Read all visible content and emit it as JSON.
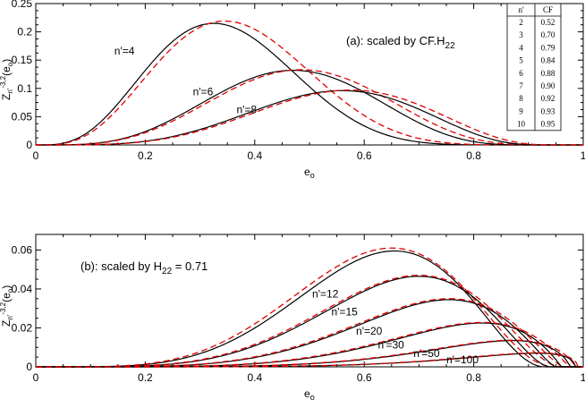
{
  "chart_data": [
    {
      "panel": "a",
      "type": "line",
      "annotation": "(a): scaled by CF.H",
      "annotation_sub": "22",
      "xlabel_main": "e",
      "xlabel_sub": "o",
      "ylabel_main": "Z",
      "ylabel_rest": "n'",
      "ylabel_sup": "-3,2",
      "ylabel_tail": "(e",
      "ylabel_tail_sub": "o",
      "ylabel_close": ")",
      "xlim": [
        0,
        1
      ],
      "ylim": [
        0,
        0.25
      ],
      "xticks": [
        "0",
        "0.2",
        "0.4",
        "0.6",
        "0.8",
        "1"
      ],
      "yticks": [
        "0",
        "0.05",
        "0.1",
        "0.15",
        "0.2",
        "0.25"
      ],
      "series": [
        {
          "label": "n'=4",
          "peak_x": 0.325,
          "peak_y": 0.215,
          "end_x": 0.93,
          "approx_peak_x": 0.345,
          "approx_peak_y": 0.219,
          "approx_end_x": 0.97
        },
        {
          "label": "n'=6",
          "peak_x": 0.47,
          "peak_y": 0.132,
          "end_x": 0.92,
          "approx_peak_x": 0.485,
          "approx_peak_y": 0.133,
          "approx_end_x": 0.95
        },
        {
          "label": "n'=8",
          "peak_x": 0.56,
          "peak_y": 0.096,
          "end_x": 0.93,
          "approx_peak_x": 0.575,
          "approx_peak_y": 0.097,
          "approx_end_x": 0.95
        }
      ],
      "cf_table": {
        "headers": [
          "n'",
          "CF"
        ],
        "rows": [
          [
            "2",
            "0.52"
          ],
          [
            "3",
            "0.70"
          ],
          [
            "4",
            "0.79"
          ],
          [
            "5",
            "0.84"
          ],
          [
            "6",
            "0.88"
          ],
          [
            "7",
            "0.90"
          ],
          [
            "8",
            "0.92"
          ],
          [
            "9",
            "0.93"
          ],
          [
            "10",
            "0.95"
          ]
        ]
      }
    },
    {
      "panel": "b",
      "type": "line",
      "annotation": "(b): scaled by H",
      "annotation_sub": "22",
      "annotation_tail": " = 0.71",
      "xlabel_main": "e",
      "xlabel_sub": "o",
      "ylabel_main": "Z",
      "ylabel_rest": "n'",
      "ylabel_sup": "-3,2",
      "ylabel_tail": "(e",
      "ylabel_tail_sub": "o",
      "ylabel_close": ")",
      "xlim": [
        0,
        1
      ],
      "ylim": [
        0,
        0.068
      ],
      "xticks": [
        "0",
        "0.2",
        "0.4",
        "0.6",
        "0.8",
        "1"
      ],
      "yticks": [
        "0",
        "0.02",
        "0.04",
        "0.06"
      ],
      "series": [
        {
          "label": "n'=12",
          "peak_x": 0.655,
          "peak_y": 0.0595,
          "end_x": 0.93,
          "approx_peak_x": 0.65,
          "approx_peak_y": 0.061,
          "approx_end_x": 0.95
        },
        {
          "label": "n'=15",
          "peak_x": 0.7,
          "peak_y": 0.0465,
          "end_x": 0.94,
          "approx_peak_x": 0.7,
          "approx_peak_y": 0.047,
          "approx_end_x": 0.96
        },
        {
          "label": "n'=20",
          "peak_x": 0.755,
          "peak_y": 0.0345,
          "end_x": 0.95,
          "approx_peak_x": 0.755,
          "approx_peak_y": 0.035,
          "approx_end_x": 0.965
        },
        {
          "label": "n'=30",
          "peak_x": 0.815,
          "peak_y": 0.0225,
          "end_x": 0.96,
          "approx_peak_x": 0.815,
          "approx_peak_y": 0.0228,
          "approx_end_x": 0.975
        },
        {
          "label": "n'=50",
          "peak_x": 0.87,
          "peak_y": 0.0135,
          "end_x": 0.975,
          "approx_peak_x": 0.87,
          "approx_peak_y": 0.0137,
          "approx_end_x": 0.985
        },
        {
          "label": "n'=100",
          "peak_x": 0.915,
          "peak_y": 0.007,
          "end_x": 0.985,
          "approx_peak_x": 0.915,
          "approx_peak_y": 0.0072,
          "approx_end_x": 0.99
        }
      ]
    }
  ]
}
